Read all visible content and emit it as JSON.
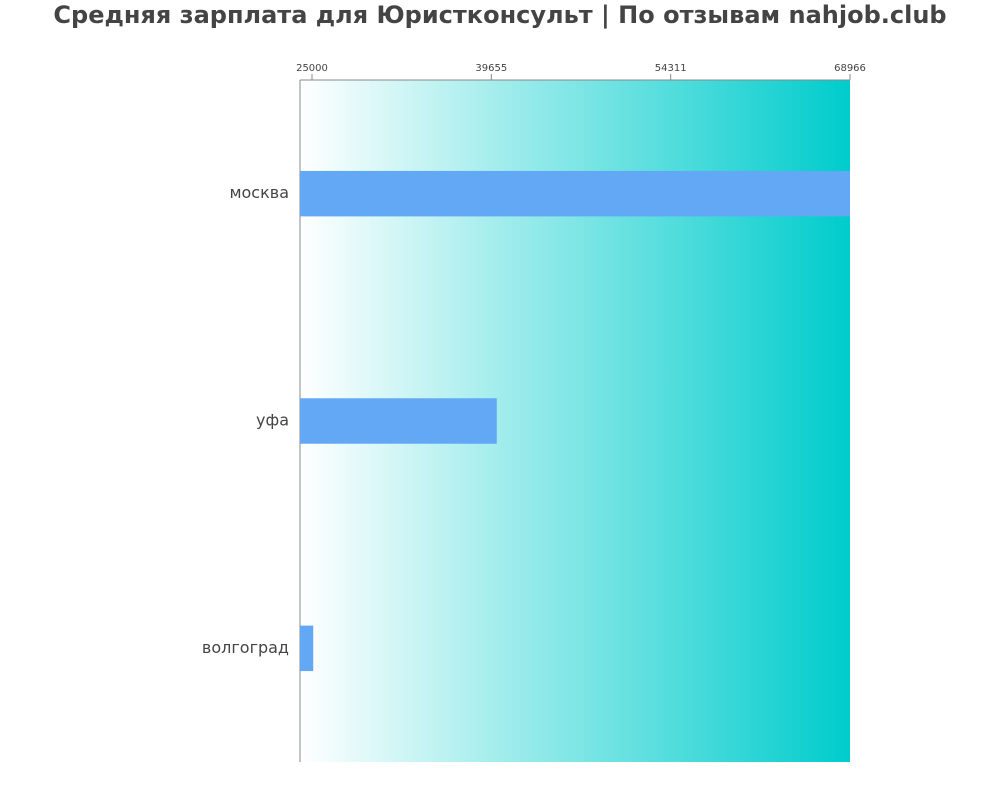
{
  "chart_data": {
    "type": "bar",
    "orientation": "horizontal",
    "title": "Средняя зарплата для Юристконсульт | По отзывам nahjob.club",
    "categories": [
      "москва",
      "уфа",
      "волгоград"
    ],
    "values": [
      68966,
      40100,
      25100
    ],
    "color": "#63a8f5",
    "xlim": [
      24020,
      68966
    ],
    "xticks": [
      25000,
      39655,
      54311,
      68966
    ],
    "background_gradient": [
      "#ffffff",
      "#00cccc"
    ]
  }
}
